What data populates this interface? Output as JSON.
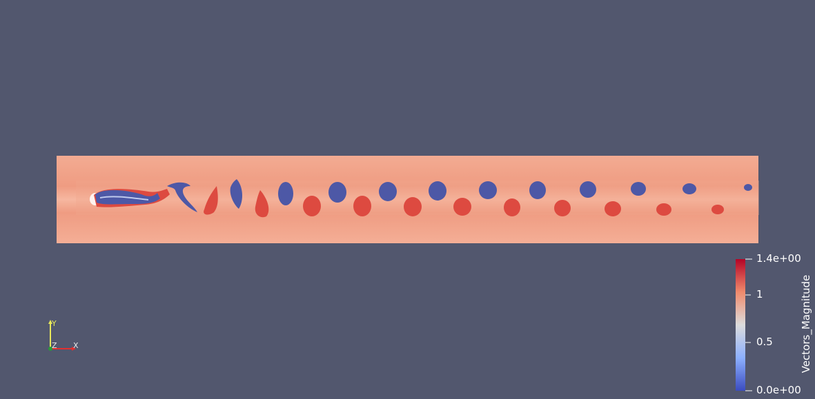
{
  "viewport": {
    "background_color": "#52576e"
  },
  "field": {
    "base_color": "#f0a288",
    "edge_color": "#f7b69e",
    "vortex_negative_color": "#4d58a6",
    "vortex_positive_color": "#dd4a40"
  },
  "color_bar": {
    "title": "Vectors_Magnitude",
    "max_label": "1.4e+00",
    "tick_1": "1",
    "tick_05": "0.5",
    "min_label": "0.0e+00",
    "range": [
      0,
      1.4
    ],
    "colormap": [
      "#3b4cc0",
      "#8db0fe",
      "#dddddd",
      "#f4987a",
      "#b40426"
    ]
  },
  "orientation_axes": {
    "y_label": "Y",
    "z_label": "Z",
    "x_label": "X",
    "y_color": "#e8e85a",
    "x_color": "#e03030",
    "z_color": "#2a9a3a"
  }
}
